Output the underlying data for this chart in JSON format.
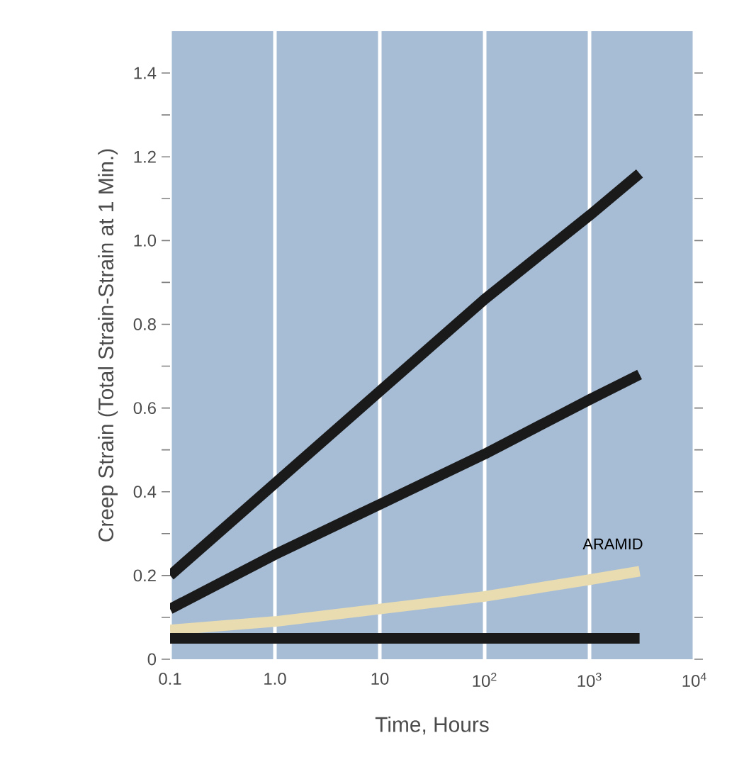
{
  "chart_data": {
    "type": "line",
    "xlabel": "Time, Hours",
    "ylabel": "Creep Strain (Total Strain-Strain at 1 Min.)",
    "x": [
      0.1,
      1,
      10,
      100,
      1000,
      3000
    ],
    "series": [
      {
        "color": "#1a1a1a",
        "values": [
          0.2,
          0.42,
          0.64,
          0.86,
          1.06,
          1.16
        ]
      },
      {
        "color": "#1a1a1a",
        "values": [
          0.12,
          0.25,
          0.37,
          0.49,
          0.62,
          0.68
        ]
      },
      {
        "name": "ARAMID",
        "color": "#e8dcb0",
        "values": [
          0.07,
          0.09,
          0.12,
          0.15,
          0.19,
          0.21
        ]
      },
      {
        "color": "#1a1a1a",
        "values": [
          0.05,
          0.05,
          0.05,
          0.05,
          0.05,
          0.05
        ]
      }
    ],
    "log": "x",
    "xlim": [
      0.1,
      10000
    ],
    "ylim": [
      0,
      1.5
    ],
    "xticks": [
      0.1,
      {
        "value": 1,
        "label": "1.0"
      },
      10,
      {
        "value": 100,
        "label": "10$^{2}$"
      },
      {
        "value": 1000,
        "label": "10$^{3}$"
      },
      {
        "value": 10000,
        "label": "10$^{4}$"
      }
    ],
    "yticks": [
      0,
      {
        "value": 0.1,
        "label": null
      },
      0.2,
      {
        "value": 0.3,
        "label": null
      },
      0.4,
      {
        "value": 0.5,
        "label": null
      },
      0.6,
      {
        "value": 0.7,
        "label": null
      },
      0.8,
      {
        "value": 0.9,
        "label": null
      },
      {
        "value": 1,
        "label": "1.0"
      },
      {
        "value": 1.1,
        "label": null
      },
      1.2,
      {
        "value": 1.3,
        "label": null
      },
      1.4
    ],
    "grid": "x"
  }
}
